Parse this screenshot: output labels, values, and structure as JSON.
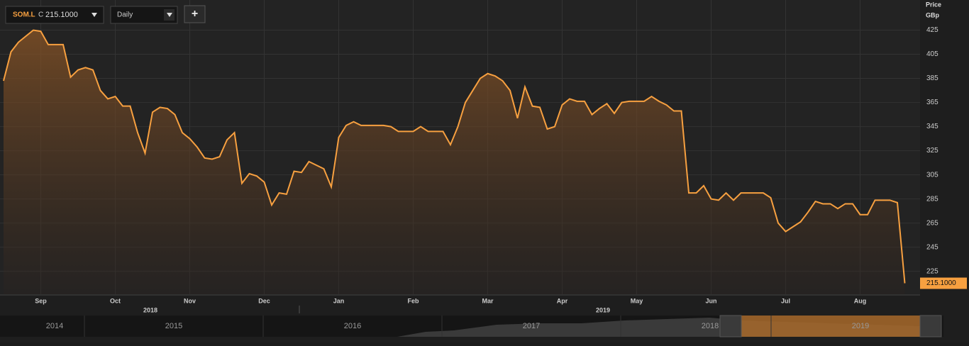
{
  "header": {
    "symbol": "SOM.L",
    "close_prefix": "C",
    "last_price_label": "215.1000",
    "interval": "Daily",
    "add_button": "+"
  },
  "chart_data": {
    "type": "line",
    "y_axis_title": "Price",
    "y_axis_unit": "GBp",
    "grid": true,
    "categories": [
      null,
      null,
      null,
      null,
      null,
      "Sep",
      null,
      null,
      null,
      null,
      null,
      null,
      null,
      null,
      null,
      "Oct",
      null,
      null,
      null,
      null,
      null,
      null,
      null,
      null,
      null,
      "Nov",
      null,
      null,
      null,
      null,
      null,
      null,
      null,
      null,
      null,
      "Dec",
      null,
      null,
      null,
      null,
      null,
      null,
      null,
      null,
      null,
      "Jan",
      null,
      null,
      null,
      null,
      null,
      null,
      null,
      null,
      null,
      "Feb",
      null,
      null,
      null,
      null,
      null,
      null,
      null,
      null,
      null,
      "Mar",
      null,
      null,
      null,
      null,
      null,
      null,
      null,
      null,
      null,
      "Apr",
      null,
      null,
      null,
      null,
      null,
      null,
      null,
      null,
      null,
      "May",
      null,
      null,
      null,
      null,
      null,
      null,
      null,
      null,
      null,
      "Jun",
      null,
      null,
      null,
      null,
      null,
      null,
      null,
      null,
      null,
      "Jul",
      null,
      null,
      null,
      null,
      null,
      null,
      null,
      null,
      null,
      "Aug",
      null,
      null,
      null,
      null,
      null,
      null
    ],
    "series": [
      {
        "name": "SOM.L",
        "color": "#f7a040",
        "values": [
          383,
          407,
          415,
          420,
          425,
          424,
          413,
          413,
          413,
          386,
          392,
          394,
          392,
          375,
          368,
          370,
          362,
          362,
          340,
          323,
          357,
          361,
          360,
          355,
          340,
          335,
          328,
          319,
          318,
          320,
          334,
          340,
          298,
          306,
          304,
          299,
          280,
          290,
          289,
          308,
          307,
          316,
          313,
          310,
          295,
          336,
          346,
          349,
          346,
          346,
          346,
          346,
          345,
          341,
          341,
          341,
          345,
          341,
          341,
          341,
          330,
          345,
          365,
          375,
          385,
          389,
          387,
          383,
          375,
          352,
          378,
          362,
          361,
          343,
          345,
          363,
          368,
          366,
          366,
          355,
          360,
          364,
          356,
          365,
          366,
          366,
          366,
          370,
          366,
          363,
          358,
          358,
          290,
          290,
          296,
          285,
          284,
          290,
          284,
          290,
          290,
          290,
          290,
          286,
          265,
          258,
          262,
          266,
          274,
          283,
          281,
          281,
          277,
          281,
          281,
          272,
          272,
          284,
          284,
          284,
          282,
          215.1
        ]
      }
    ],
    "ylim": [
      206,
      450
    ],
    "yticks": [
      225,
      245,
      265,
      285,
      305,
      325,
      345,
      365,
      385,
      405,
      425
    ],
    "year_labels": [
      "2018",
      "2019"
    ]
  },
  "navigator": {
    "years": [
      "2014",
      "2015",
      "2016",
      "2017",
      "2018",
      "2019"
    ]
  }
}
